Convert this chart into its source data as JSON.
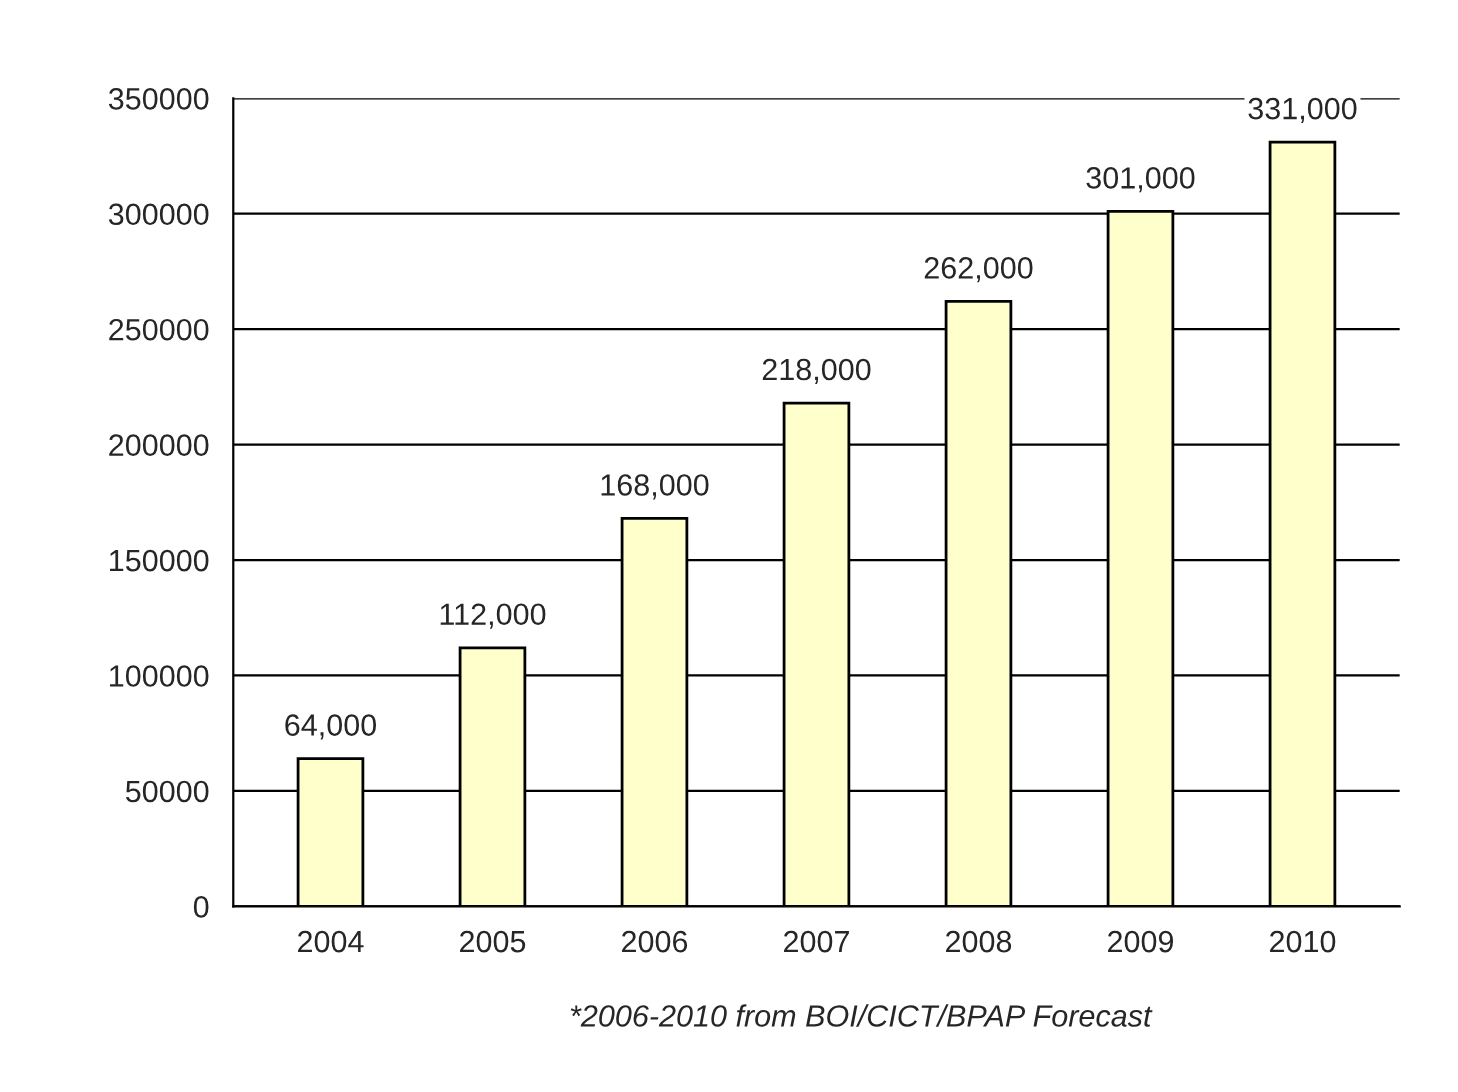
{
  "chart_data": {
    "type": "bar",
    "categories": [
      "2004",
      "2005",
      "2006",
      "2007",
      "2008",
      "2009",
      "2010"
    ],
    "values": [
      64000,
      112000,
      168000,
      218000,
      262000,
      301000,
      331000
    ],
    "value_labels": [
      "64,000",
      "112,000",
      "168,000",
      "218,000",
      "262,000",
      "301,000",
      "331,000"
    ],
    "color": "#ffffcc",
    "ylim": [
      0,
      350000
    ],
    "yticks": [
      0,
      50000,
      100000,
      150000,
      200000,
      250000,
      300000,
      350000
    ],
    "grid": "y",
    "annotations": [
      "*2006-2010 from BOI/CICT/BPAP Forecast"
    ]
  }
}
